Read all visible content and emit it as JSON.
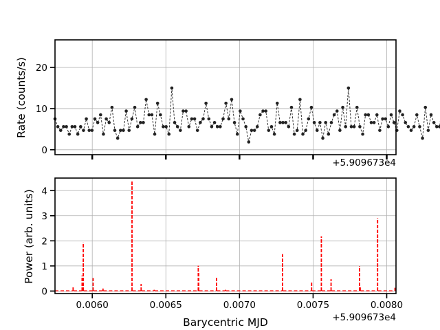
{
  "chart_data": [
    {
      "type": "line",
      "ylabel": "Rate (counts/s)",
      "xlabel": "",
      "x_offset_label": "+5.909673e4",
      "xlim": [
        0.005747,
        0.008063
      ],
      "ylim": [
        -1.2,
        26.7
      ],
      "y_ticks": [
        0,
        10,
        20
      ],
      "x_ticks": [
        0.006,
        0.0065,
        0.007,
        0.0075,
        0.008
      ],
      "x_tick_labels_visible": false,
      "grid": true,
      "series_color": "#333333",
      "line_style": "dashed",
      "x_start": 0.005747,
      "x_step": 1.935e-05,
      "series": [
        {
          "values": [
            7.5,
            5.6,
            4.7,
            5.6,
            5.6,
            3.8,
            5.6,
            5.6,
            3.8,
            5.6,
            4.7,
            7.5,
            4.7,
            4.7,
            7.5,
            6.6,
            8.5,
            3.8,
            7.5,
            6.6,
            10.3,
            4.7,
            2.8,
            4.7,
            4.7,
            9.4,
            4.7,
            7.5,
            10.3,
            5.6,
            6.6,
            6.6,
            12.2,
            8.5,
            8.5,
            3.8,
            11.3,
            8.5,
            5.6,
            5.6,
            3.8,
            15.0,
            6.6,
            5.6,
            4.7,
            9.4,
            9.4,
            5.6,
            7.5,
            7.5,
            4.7,
            6.6,
            7.5,
            11.3,
            7.5,
            5.6,
            6.6,
            5.6,
            5.6,
            7.5,
            11.3,
            7.5,
            12.2,
            6.6,
            3.8,
            9.4,
            7.5,
            5.6,
            1.9,
            4.7,
            4.7,
            5.6,
            8.5,
            9.4,
            9.4,
            4.7,
            5.6,
            3.8,
            11.3,
            6.6,
            6.6,
            6.6,
            5.6,
            10.3,
            3.8,
            4.7,
            12.2,
            3.8,
            4.7,
            7.5,
            10.3,
            6.6,
            4.7,
            6.6,
            2.8,
            6.6,
            3.8,
            6.6,
            8.5,
            9.4,
            4.7,
            10.3,
            5.6,
            15.0,
            5.6,
            5.6,
            10.3,
            5.6,
            3.8,
            8.5,
            8.5,
            6.6,
            6.6,
            8.5,
            4.7,
            7.5,
            7.5,
            5.6,
            8.5,
            6.6,
            4.7,
            9.4,
            8.5,
            6.6,
            5.6,
            4.7,
            5.6,
            8.5,
            5.6,
            2.8,
            10.3,
            4.7,
            8.5,
            6.6,
            5.6,
            5.6,
            11.3,
            8.5,
            11.3,
            3.8
          ]
        }
      ]
    },
    {
      "type": "line",
      "ylabel": "Power (arb. units)",
      "xlabel": "Barycentric MJD",
      "x_offset_label": "+5.909673e4",
      "xlim": [
        0.005747,
        0.008063
      ],
      "ylim": [
        -0.1,
        4.5
      ],
      "y_ticks": [
        0,
        1,
        2,
        3,
        4
      ],
      "x_ticks": [
        0.006,
        0.0065,
        0.007,
        0.0075,
        0.008
      ],
      "x_tick_labels": [
        "0.0060",
        "0.0065",
        "0.0070",
        "0.0075",
        "0.0080"
      ],
      "grid": true,
      "series_color": "#ff0000",
      "line_style": "dashed",
      "baseline": 0.01,
      "peaks": [
        {
          "x": 0.00587,
          "y": 0.18
        },
        {
          "x": 0.005931,
          "y": 0.62
        },
        {
          "x": 0.005939,
          "y": 1.93
        },
        {
          "x": 0.006006,
          "y": 0.52
        },
        {
          "x": 0.006073,
          "y": 0.1
        },
        {
          "x": 0.00627,
          "y": 4.4
        },
        {
          "x": 0.006332,
          "y": 0.28
        },
        {
          "x": 0.006421,
          "y": 0.05
        },
        {
          "x": 0.00672,
          "y": 1.01
        },
        {
          "x": 0.006723,
          "y": 0.78
        },
        {
          "x": 0.006844,
          "y": 0.58
        },
        {
          "x": 0.006905,
          "y": 0.05
        },
        {
          "x": 0.007292,
          "y": 1.47
        },
        {
          "x": 0.00749,
          "y": 0.37
        },
        {
          "x": 0.007556,
          "y": 2.18
        },
        {
          "x": 0.007622,
          "y": 0.47
        },
        {
          "x": 0.007815,
          "y": 0.99
        },
        {
          "x": 0.00782,
          "y": 0.2
        },
        {
          "x": 0.007938,
          "y": 2.9
        },
        {
          "x": 0.008056,
          "y": 0.13
        }
      ]
    }
  ]
}
